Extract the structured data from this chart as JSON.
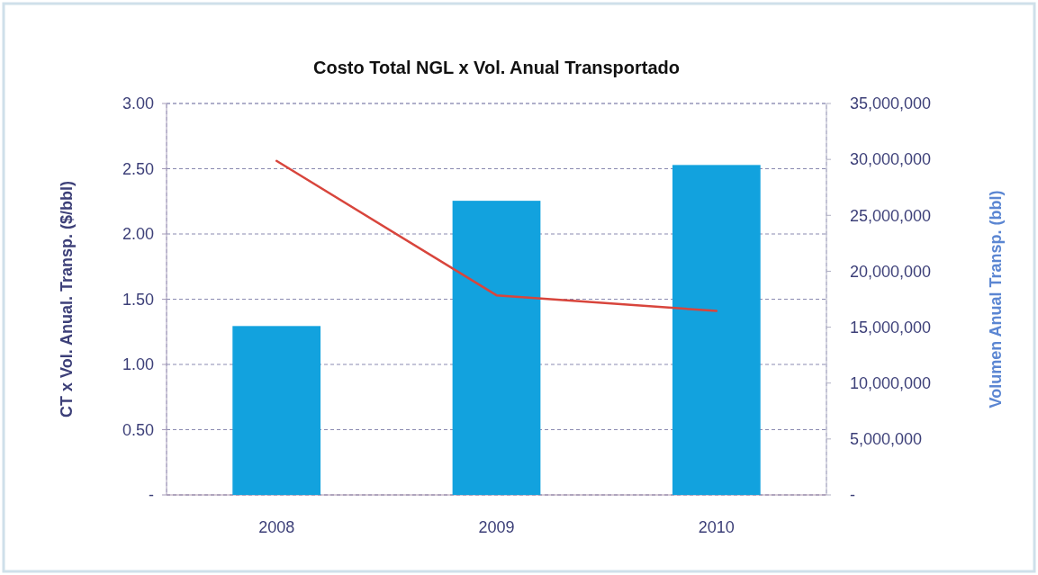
{
  "chart_data": {
    "type": "bar",
    "title": "Costo Total NGL x Vol. Anual Transportado",
    "ylabel": "CT x Vol. Anual. Transp. ($/bbl)",
    "y2label": "Volumen Anual Transp. (bbl)",
    "categories": [
      "2008",
      "2009",
      "2010"
    ],
    "series": [
      {
        "axis": "y2",
        "color": "#12a2de",
        "values": [
          15100000,
          26300000,
          29500000
        ]
      },
      {
        "type": "line",
        "axis": "y",
        "color": "#d8453c",
        "values": [
          2.56,
          1.53,
          1.41
        ]
      }
    ],
    "ylim": [
      0,
      3
    ],
    "yticks": [
      {
        "value": 0,
        "label": "-"
      },
      {
        "value": 0.5,
        "label": "0.50"
      },
      {
        "value": 1,
        "label": "1.00"
      },
      {
        "value": 1.5,
        "label": "1.50"
      },
      {
        "value": 2,
        "label": "2.00"
      },
      {
        "value": 2.5,
        "label": "2.50"
      },
      {
        "value": 3,
        "label": "3.00"
      }
    ],
    "y2lim": [
      0,
      35000000
    ],
    "y2ticks": [
      {
        "value": 0,
        "label": "-"
      },
      {
        "value": 5000000,
        "label": "5,000,000"
      },
      {
        "value": 10000000,
        "label": "10,000,000"
      },
      {
        "value": 15000000,
        "label": "15,000,000"
      },
      {
        "value": 20000000,
        "label": "20,000,000"
      },
      {
        "value": 25000000,
        "label": "25,000,000"
      },
      {
        "value": 30000000,
        "label": "30,000,000"
      },
      {
        "value": 35000000,
        "label": "35,000,000"
      }
    ],
    "grid": "y",
    "marker": "none",
    "line_style": "solid"
  }
}
